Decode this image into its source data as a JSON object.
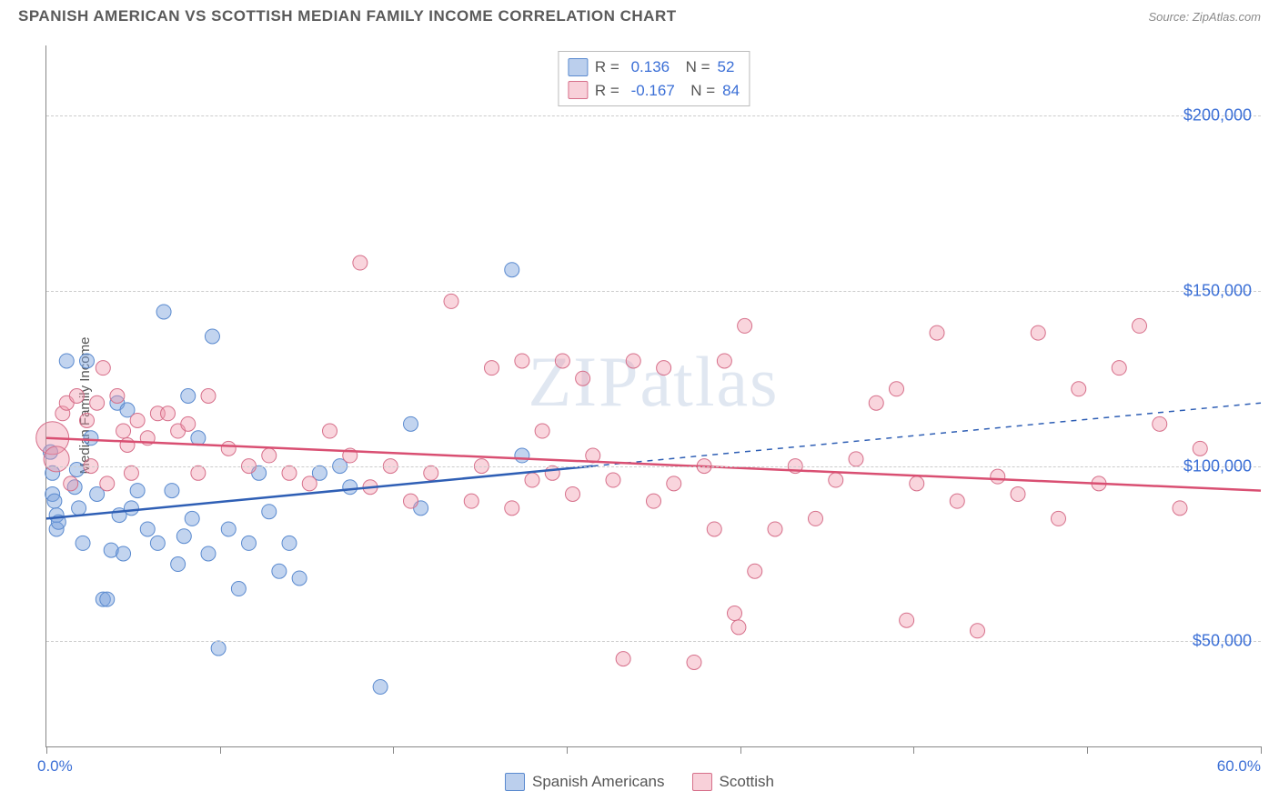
{
  "header": {
    "title": "SPANISH AMERICAN VS SCOTTISH MEDIAN FAMILY INCOME CORRELATION CHART",
    "source": "Source: ZipAtlas.com"
  },
  "watermark": "ZIPatlas",
  "chart": {
    "type": "scatter",
    "yaxis_title": "Median Family Income",
    "xlim": [
      0,
      60
    ],
    "ylim": [
      20000,
      220000
    ],
    "xlabel_min": "0.0%",
    "xlabel_max": "60.0%",
    "xticks_pct": [
      0,
      8.57,
      17.14,
      25.71,
      34.28,
      42.85,
      51.42,
      60
    ],
    "yticks": [
      {
        "v": 50000,
        "label": "$50,000"
      },
      {
        "v": 100000,
        "label": "$100,000"
      },
      {
        "v": 150000,
        "label": "$150,000"
      },
      {
        "v": 200000,
        "label": "$200,000"
      }
    ],
    "grid_color": "#cccccc",
    "background_color": "#ffffff",
    "series": [
      {
        "name": "Spanish Americans",
        "color_fill": "rgba(120,160,220,0.45)",
        "color_stroke": "#5a8acf",
        "marker_r": 8,
        "R": "0.136",
        "N": "52",
        "trend": {
          "x1": 0,
          "y1": 85000,
          "x2": 27,
          "y2": 100000,
          "x2_ext": 60,
          "y2_ext": 118000,
          "color": "#2f5fb5",
          "width": 2.5
        },
        "points": [
          [
            0.2,
            104000
          ],
          [
            0.3,
            98000
          ],
          [
            0.3,
            92000
          ],
          [
            0.4,
            90000
          ],
          [
            0.5,
            86000
          ],
          [
            0.5,
            82000
          ],
          [
            0.6,
            84000
          ],
          [
            1.0,
            130000
          ],
          [
            1.4,
            94000
          ],
          [
            1.5,
            99000
          ],
          [
            1.6,
            88000
          ],
          [
            1.8,
            78000
          ],
          [
            2.0,
            130000
          ],
          [
            2.2,
            108000
          ],
          [
            2.5,
            92000
          ],
          [
            2.8,
            62000
          ],
          [
            3.0,
            62000
          ],
          [
            3.2,
            76000
          ],
          [
            3.5,
            118000
          ],
          [
            3.6,
            86000
          ],
          [
            3.8,
            75000
          ],
          [
            4.0,
            116000
          ],
          [
            4.2,
            88000
          ],
          [
            4.5,
            93000
          ],
          [
            5.0,
            82000
          ],
          [
            5.5,
            78000
          ],
          [
            5.8,
            144000
          ],
          [
            6.2,
            93000
          ],
          [
            6.5,
            72000
          ],
          [
            6.8,
            80000
          ],
          [
            7.0,
            120000
          ],
          [
            7.2,
            85000
          ],
          [
            7.5,
            108000
          ],
          [
            8.0,
            75000
          ],
          [
            8.2,
            137000
          ],
          [
            8.5,
            48000
          ],
          [
            9.0,
            82000
          ],
          [
            9.5,
            65000
          ],
          [
            10.0,
            78000
          ],
          [
            10.5,
            98000
          ],
          [
            11.0,
            87000
          ],
          [
            11.5,
            70000
          ],
          [
            12.0,
            78000
          ],
          [
            12.5,
            68000
          ],
          [
            13.5,
            98000
          ],
          [
            14.5,
            100000
          ],
          [
            15.0,
            94000
          ],
          [
            16.5,
            37000
          ],
          [
            18.0,
            112000
          ],
          [
            18.5,
            88000
          ],
          [
            23.0,
            156000
          ],
          [
            23.5,
            103000
          ]
        ]
      },
      {
        "name": "Scottish",
        "color_fill": "rgba(240,150,170,0.40)",
        "color_stroke": "#d66f8a",
        "marker_r": 8,
        "R": "-0.167",
        "N": "84",
        "trend": {
          "x1": 0,
          "y1": 108000,
          "x2": 60,
          "y2": 93000,
          "color": "#d94f72",
          "width": 2.5
        },
        "points": [
          [
            0.3,
            108000,
            18
          ],
          [
            0.5,
            102000,
            14
          ],
          [
            0.8,
            115000
          ],
          [
            1.0,
            118000
          ],
          [
            1.2,
            95000
          ],
          [
            1.5,
            120000
          ],
          [
            2.0,
            113000
          ],
          [
            2.2,
            100000
          ],
          [
            2.5,
            118000
          ],
          [
            2.8,
            128000
          ],
          [
            3.0,
            95000
          ],
          [
            3.5,
            120000
          ],
          [
            3.8,
            110000
          ],
          [
            4.0,
            106000
          ],
          [
            4.2,
            98000
          ],
          [
            4.5,
            113000
          ],
          [
            5.0,
            108000
          ],
          [
            5.5,
            115000
          ],
          [
            6.0,
            115000
          ],
          [
            6.5,
            110000
          ],
          [
            7.0,
            112000
          ],
          [
            7.5,
            98000
          ],
          [
            8.0,
            120000
          ],
          [
            9.0,
            105000
          ],
          [
            10.0,
            100000
          ],
          [
            11.0,
            103000
          ],
          [
            12.0,
            98000
          ],
          [
            13.0,
            95000
          ],
          [
            14.0,
            110000
          ],
          [
            15.0,
            103000
          ],
          [
            15.5,
            158000
          ],
          [
            16.0,
            94000
          ],
          [
            17.0,
            100000
          ],
          [
            18.0,
            90000
          ],
          [
            19.0,
            98000
          ],
          [
            20.0,
            147000
          ],
          [
            21.0,
            90000
          ],
          [
            21.5,
            100000
          ],
          [
            22.0,
            128000
          ],
          [
            23.0,
            88000
          ],
          [
            23.5,
            130000
          ],
          [
            24.0,
            96000
          ],
          [
            24.5,
            110000
          ],
          [
            25.0,
            98000
          ],
          [
            25.5,
            130000
          ],
          [
            26.0,
            92000
          ],
          [
            26.5,
            125000
          ],
          [
            27.0,
            103000
          ],
          [
            28.0,
            96000
          ],
          [
            28.5,
            45000
          ],
          [
            29.0,
            130000
          ],
          [
            30.0,
            90000
          ],
          [
            30.5,
            128000
          ],
          [
            31.0,
            95000
          ],
          [
            32.0,
            44000
          ],
          [
            32.5,
            100000
          ],
          [
            33.0,
            82000
          ],
          [
            33.5,
            130000
          ],
          [
            34.0,
            58000
          ],
          [
            34.2,
            54000
          ],
          [
            34.5,
            140000
          ],
          [
            35.0,
            70000
          ],
          [
            36.0,
            82000
          ],
          [
            37.0,
            100000
          ],
          [
            38.0,
            85000
          ],
          [
            39.0,
            96000
          ],
          [
            40.0,
            102000
          ],
          [
            41.0,
            118000
          ],
          [
            42.0,
            122000
          ],
          [
            42.5,
            56000
          ],
          [
            43.0,
            95000
          ],
          [
            44.0,
            138000
          ],
          [
            45.0,
            90000
          ],
          [
            46.0,
            53000
          ],
          [
            47.0,
            97000
          ],
          [
            48.0,
            92000
          ],
          [
            49.0,
            138000
          ],
          [
            50.0,
            85000
          ],
          [
            51.0,
            122000
          ],
          [
            52.0,
            95000
          ],
          [
            53.0,
            128000
          ],
          [
            54.0,
            140000
          ],
          [
            55.0,
            112000
          ],
          [
            56.0,
            88000
          ],
          [
            57.0,
            105000
          ]
        ]
      }
    ]
  },
  "bottom_legend": {
    "items": [
      {
        "label": "Spanish Americans",
        "swatch": "blue"
      },
      {
        "label": "Scottish",
        "swatch": "pink"
      }
    ]
  }
}
